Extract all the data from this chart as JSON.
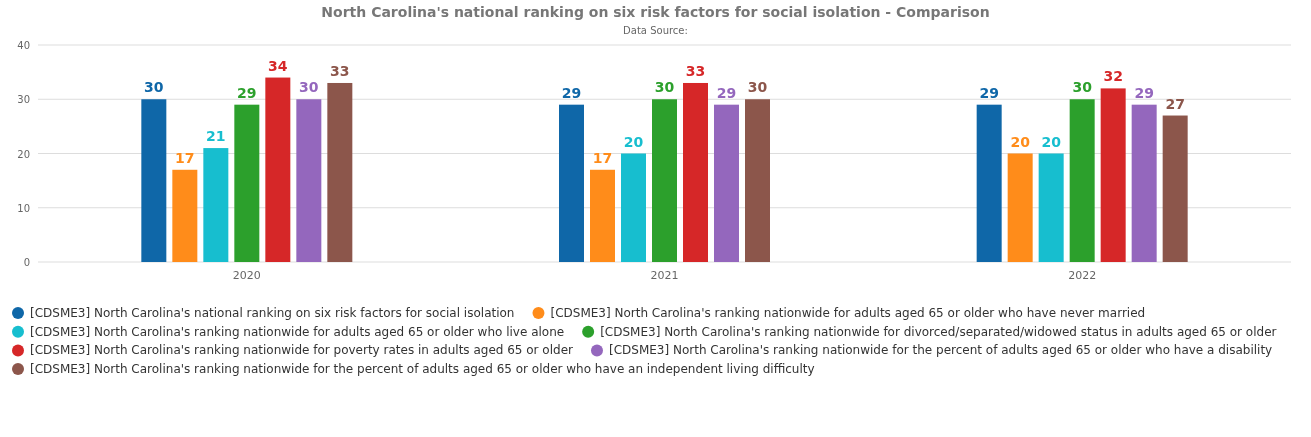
{
  "chart_data": {
    "type": "bar",
    "title": "North Carolina's national ranking on six risk factors for social isolation - Comparison",
    "subtitle": "Data Source:",
    "categories": [
      "2020",
      "2021",
      "2022"
    ],
    "series": [
      {
        "name": "[CDSME3] North Carolina's national ranking on six risk factors for social isolation",
        "color": "#0f67a8",
        "values": [
          30,
          29,
          29
        ]
      },
      {
        "name": "[CDSME3] North Carolina's ranking nationwide for adults aged 65 or older who have never married",
        "color": "#ff8c1a",
        "values": [
          17,
          17,
          20
        ]
      },
      {
        "name": "[CDSME3] North Carolina's ranking nationwide for adults aged 65 or older who live alone",
        "color": "#17becf",
        "values": [
          21,
          20,
          20
        ]
      },
      {
        "name": "[CDSME3] North Carolina's ranking nationwide for divorced/separated/widowed status in adults aged 65 or older",
        "color": "#2ca02c",
        "values": [
          29,
          30,
          30
        ]
      },
      {
        "name": "[CDSME3] North Carolina's ranking nationwide for poverty rates in adults aged 65 or older",
        "color": "#d62728",
        "values": [
          34,
          33,
          32
        ]
      },
      {
        "name": "[CDSME3] North Carolina's ranking nationwide for the percent of adults aged 65 or older who have a disability",
        "color": "#9467bd",
        "values": [
          30,
          29,
          29
        ]
      },
      {
        "name": "[CDSME3] North Carolina's ranking nationwide for the percent of adults aged 65 or older who have an independent living difficulty",
        "color": "#8c564b",
        "values": [
          33,
          30,
          27
        ]
      }
    ],
    "ylim": [
      0,
      40
    ],
    "yticks": [
      0,
      10,
      20,
      30,
      40
    ],
    "grid": "y",
    "legend": "bottom",
    "data_labels": true
  }
}
